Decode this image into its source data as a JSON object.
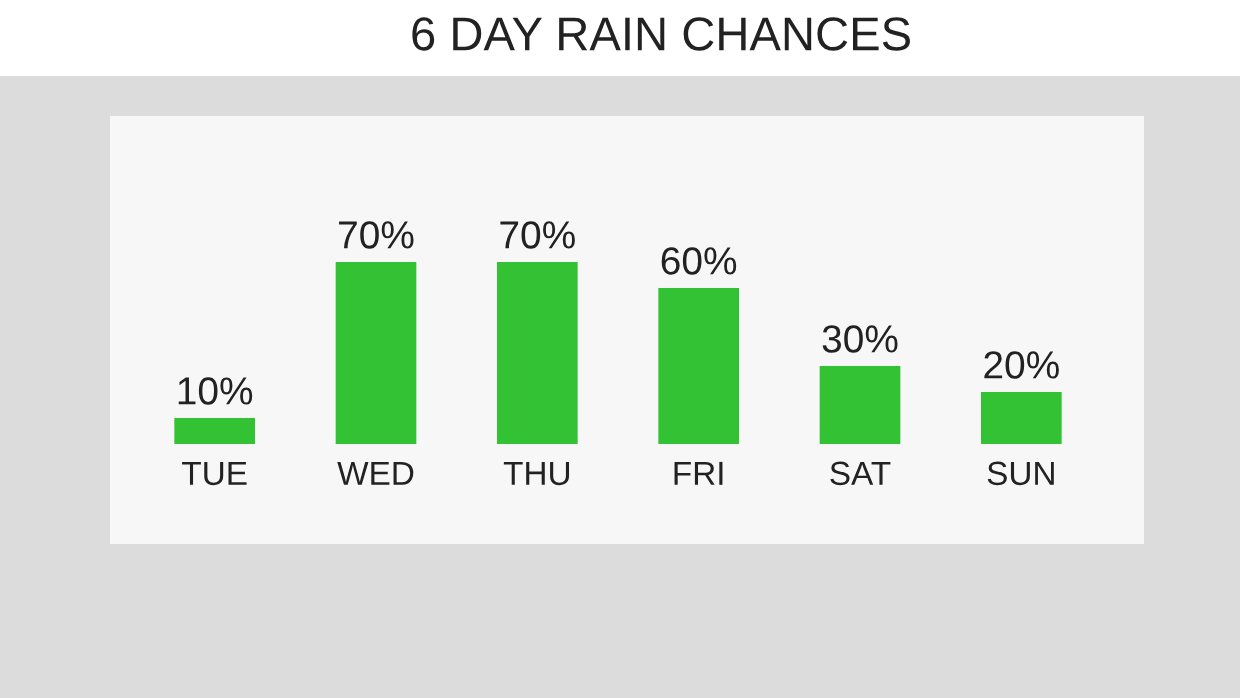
{
  "chart_data": {
    "type": "bar",
    "title": "6 DAY RAIN CHANCES",
    "categories": [
      "TUE",
      "WED",
      "THU",
      "FRI",
      "SAT",
      "SUN"
    ],
    "values": [
      10,
      70,
      70,
      60,
      30,
      20
    ],
    "value_labels": [
      "10%",
      "70%",
      "70%",
      "60%",
      "30%",
      "20%"
    ],
    "color": "#33c233"
  }
}
